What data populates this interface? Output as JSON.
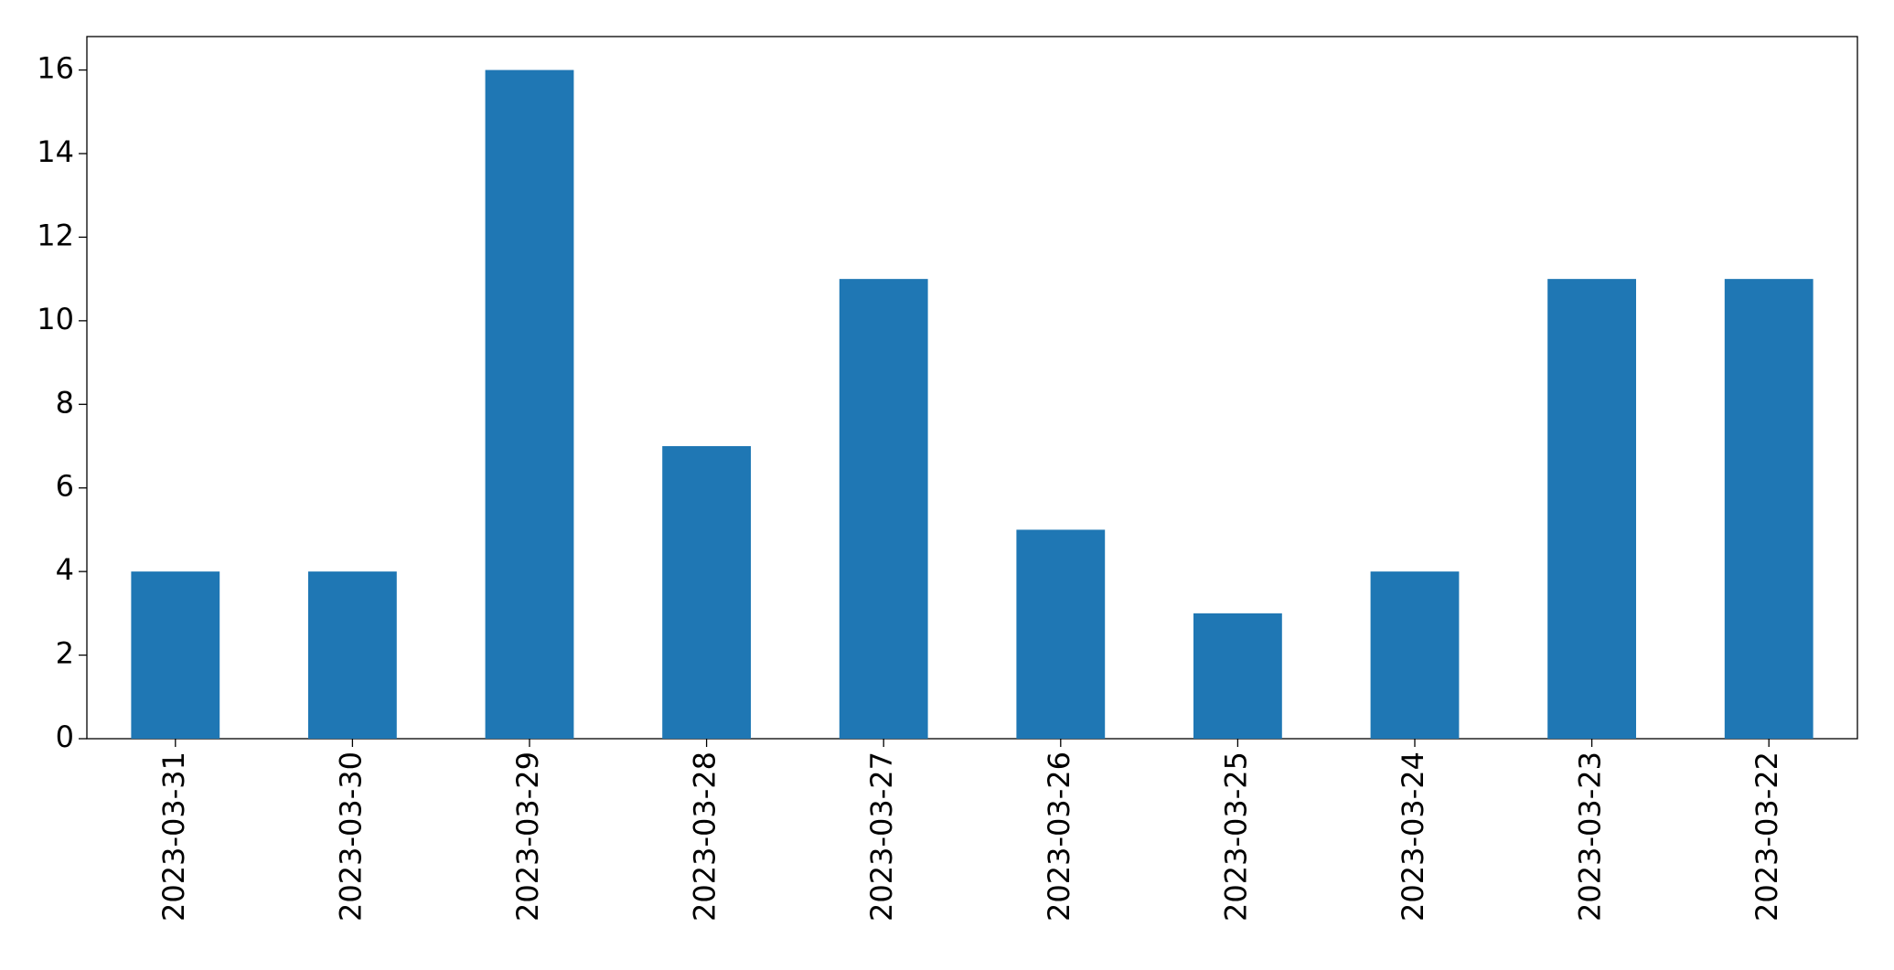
{
  "chart_data": {
    "type": "bar",
    "categories": [
      "2023-03-31",
      "2023-03-30",
      "2023-03-29",
      "2023-03-28",
      "2023-03-27",
      "2023-03-26",
      "2023-03-25",
      "2023-03-24",
      "2023-03-23",
      "2023-03-22"
    ],
    "values": [
      4,
      4,
      16,
      7,
      11,
      5,
      3,
      4,
      11,
      11
    ],
    "color": "#1f77b4",
    "ylim": [
      0,
      16.8
    ],
    "yticks": [
      0,
      2,
      4,
      6,
      8,
      10,
      12,
      14,
      16
    ],
    "grid": false
  }
}
